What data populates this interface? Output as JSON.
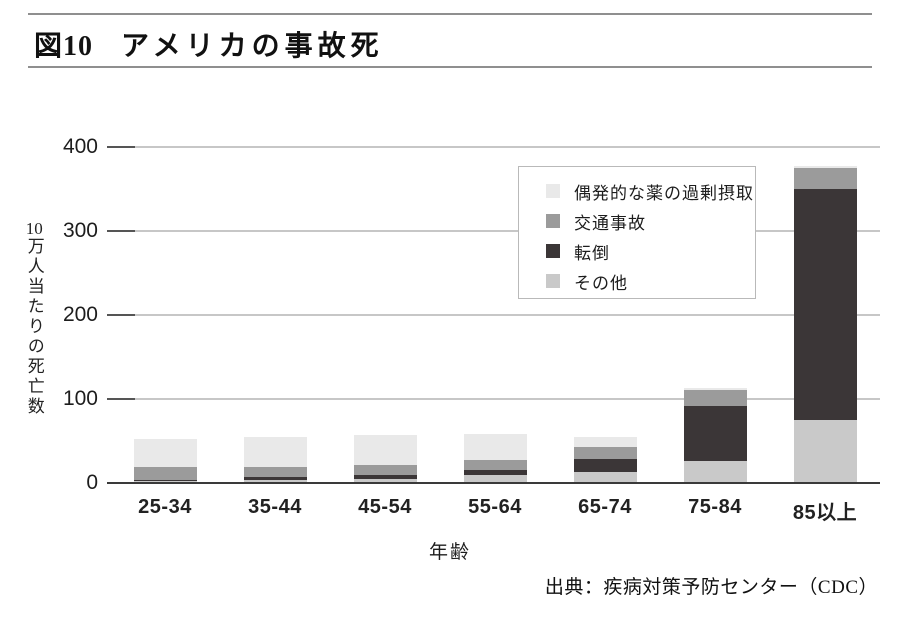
{
  "figure": {
    "number": "図10",
    "title": "アメリカの事故死"
  },
  "y_axis": {
    "unit_prefix": "10",
    "label_rest": "万人当たりの死亡数",
    "full_label": "10万人当たりの死亡数"
  },
  "x_axis": {
    "title": "年齢"
  },
  "source": "出典：疾病対策予防センター（CDC）",
  "chart_data": {
    "type": "bar",
    "stacked": true,
    "title": "図10 アメリカの事故死",
    "xlabel": "年齢",
    "ylabel": "10万人当たりの死亡数",
    "ylim": [
      0,
      400
    ],
    "yticks": [
      0,
      100,
      200,
      300,
      400
    ],
    "grid": "horizontal",
    "legend_position": "inside upper center",
    "categories": [
      "25-34",
      "35-44",
      "45-54",
      "55-64",
      "65-74",
      "75-84",
      "85以上"
    ],
    "series": [
      {
        "name": "偶発的な薬の過剰摂取",
        "color": "#e9e9e9",
        "values": [
          33,
          36,
          35,
          30,
          12,
          2,
          2
        ]
      },
      {
        "name": "交通事故",
        "color": "#9b9b9b",
        "values": [
          15,
          12,
          12,
          13,
          14,
          19,
          25
        ]
      },
      {
        "name": "転倒",
        "color": "#3b3637",
        "values": [
          2,
          4,
          5,
          6,
          16,
          66,
          275
        ]
      },
      {
        "name": "その他",
        "color": "#c9c9c9",
        "values": [
          2,
          3,
          5,
          9,
          13,
          26,
          75
        ]
      }
    ],
    "totals": [
      52,
      55,
      57,
      58,
      55,
      113,
      377
    ],
    "colors": {
      "gridline": "#c7c7c7",
      "axis": "#3a3a3a",
      "text": "#1c1c1c"
    }
  }
}
